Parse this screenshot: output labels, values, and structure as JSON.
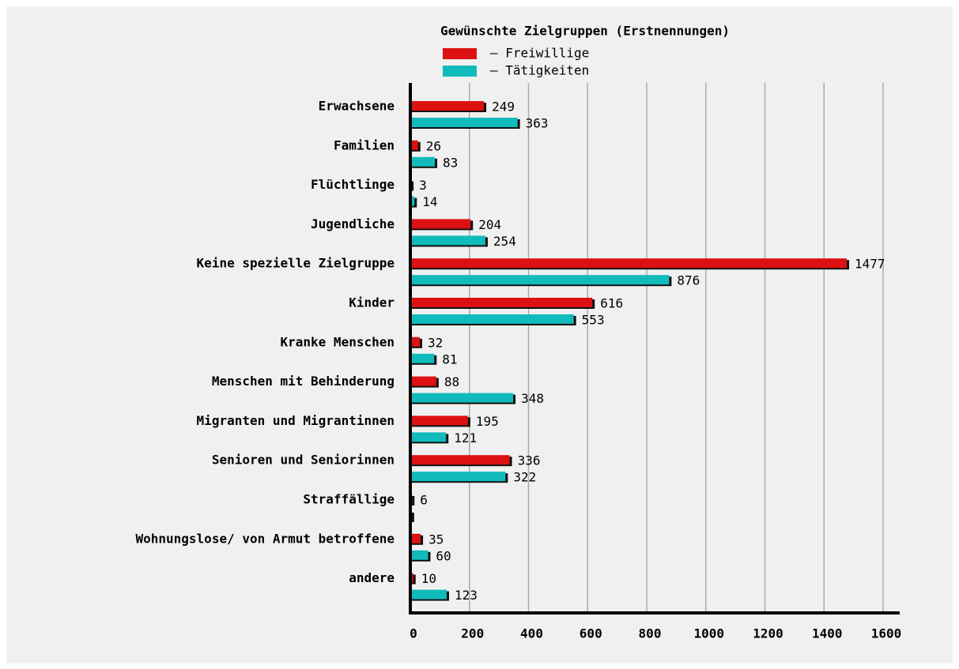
{
  "chart_data": {
    "type": "bar",
    "orientation": "horizontal",
    "title": "Gewünschte Zielgruppen (Erstnennungen)",
    "categories": [
      "Erwachsene",
      "Familien",
      "Flüchtlinge",
      "Jugendliche",
      "Keine spezielle Zielgruppe",
      "Kinder",
      "Kranke Menschen",
      "Menschen mit Behinderung",
      "Migranten und Migrantinnen",
      "Senioren und Seniorinnen",
      "Straffällige",
      "Wohnungslose/ von Armut betroffene",
      "andere"
    ],
    "series": [
      {
        "name": "– Freiwillige",
        "color": "#dd1111",
        "values": [
          249,
          26,
          3,
          204,
          1477,
          616,
          32,
          88,
          195,
          336,
          6,
          35,
          10
        ]
      },
      {
        "name": "– Tätigkeiten",
        "color": "#11bbbb",
        "values": [
          363,
          83,
          14,
          254,
          876,
          553,
          81,
          348,
          121,
          322,
          5,
          60,
          123
        ],
        "value_labels": [
          "363",
          "83",
          "14",
          "254",
          "876",
          "553",
          "81",
          "348",
          "121",
          "322",
          null,
          "60",
          "123"
        ]
      }
    ],
    "xlim": [
      0,
      1600
    ],
    "xticks": [
      0,
      200,
      400,
      600,
      800,
      1000,
      1200,
      1400,
      1600
    ],
    "grid": true
  }
}
